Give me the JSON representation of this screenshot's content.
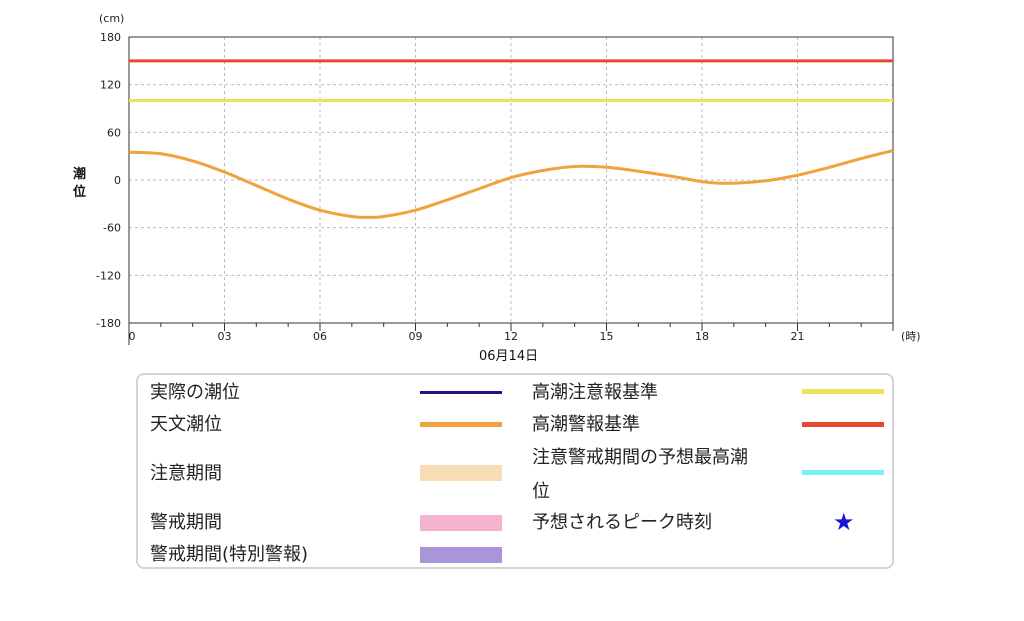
{
  "chart_data": {
    "type": "line",
    "unit": "(cm)",
    "ylabel": "潮位",
    "xunit": "(時)",
    "date_label": "06月14日",
    "ylim": [
      -180,
      180
    ],
    "yticks": [
      180,
      120,
      60,
      0,
      -60,
      -120,
      -180
    ],
    "xlim": [
      0,
      24
    ],
    "xticks": [
      {
        "v": 0,
        "label": "0"
      },
      {
        "v": 3,
        "label": "03"
      },
      {
        "v": 6,
        "label": "06"
      },
      {
        "v": 9,
        "label": "09"
      },
      {
        "v": 12,
        "label": "12"
      },
      {
        "v": 15,
        "label": "15"
      },
      {
        "v": 18,
        "label": "18"
      },
      {
        "v": 21,
        "label": "21"
      }
    ],
    "grid": true,
    "reference_lines": [
      {
        "name": "高潮警報基準",
        "value": 150,
        "color": "#e8472e"
      },
      {
        "name": "高潮注意報基準",
        "value": 100,
        "color": "#ede25a"
      }
    ],
    "series": [
      {
        "name": "天文潮位",
        "color": "#efa33d",
        "x": [
          0,
          1,
          2,
          3,
          4,
          5,
          6,
          7,
          7.5,
          8,
          9,
          10,
          11,
          12,
          13,
          14,
          15,
          16,
          17,
          18,
          18.5,
          19,
          20,
          21,
          22,
          23,
          24
        ],
        "y": [
          35,
          33,
          24,
          10,
          -7,
          -24,
          -38,
          -46,
          -47,
          -46,
          -38,
          -25,
          -11,
          3,
          12,
          17,
          16,
          11,
          5,
          -2,
          -4,
          -4,
          -1,
          6,
          16,
          27,
          37
        ]
      }
    ]
  },
  "legend": {
    "left": [
      {
        "label": "実際の潮位",
        "kind": "line",
        "color": "#2a0f8a"
      },
      {
        "label": "天文潮位",
        "kind": "thick",
        "color": "#efa33d"
      },
      {
        "label": "注意期間",
        "kind": "box",
        "color": "#f7dcb6"
      },
      {
        "label": "警戒期間",
        "kind": "box",
        "color": "#f4b3ce"
      },
      {
        "label": "警戒期間(特別警報)",
        "kind": "box",
        "color": "#a995d8"
      }
    ],
    "right": [
      {
        "label": "高潮注意報基準",
        "kind": "thick",
        "color": "#ede25a"
      },
      {
        "label": "高潮警報基準",
        "kind": "thick",
        "color": "#e8472e"
      },
      {
        "label1": "注意警戒期間の予想最高潮",
        "label2": "位",
        "kind": "thick",
        "color": "#78f0f6"
      },
      {
        "label": "予想されるピーク時刻",
        "kind": "star",
        "icon": "★",
        "color": "#1a14d9"
      }
    ]
  }
}
